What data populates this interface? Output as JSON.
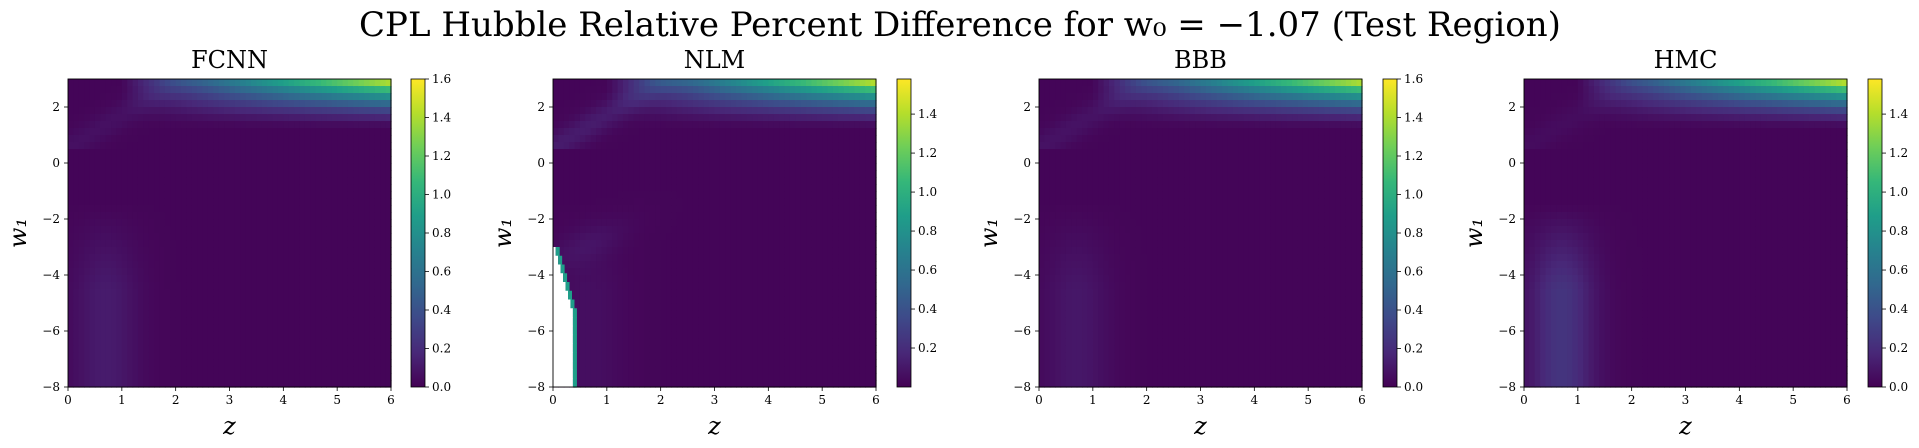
{
  "figure": {
    "title": "CPL Hubble Relative Percent Difference for w₀ = −1.07 (Test Region)"
  },
  "colormap": [
    "#440154",
    "#482878",
    "#3e4989",
    "#31688e",
    "#26828e",
    "#1f9e89",
    "#35b779",
    "#6ece58",
    "#b5de2b",
    "#fde725"
  ],
  "chart_data": [
    {
      "type": "heatmap",
      "title": "FCNN",
      "xlabel": "z",
      "ylabel": "w₁",
      "xlim": [
        0,
        6
      ],
      "ylim": [
        -8,
        3
      ],
      "xticks": [
        0,
        1,
        2,
        3,
        4,
        5,
        6
      ],
      "yticks": [
        -8,
        -6,
        -4,
        -2,
        0,
        2
      ],
      "colorbar": {
        "min": 0.0,
        "max": 1.6,
        "ticks": [
          "0.0",
          "0.2",
          "0.4",
          "0.6",
          "0.8",
          "1.0",
          "1.2",
          "1.4",
          "1.6"
        ]
      },
      "grid": false
    },
    {
      "type": "heatmap",
      "title": "NLM",
      "xlabel": "z",
      "ylabel": "w₁",
      "xlim": [
        0,
        6
      ],
      "ylim": [
        -8,
        3
      ],
      "xticks": [
        0,
        1,
        2,
        3,
        4,
        5,
        6
      ],
      "yticks": [
        -8,
        -6,
        -4,
        -2,
        0,
        2
      ],
      "colorbar": {
        "min": 0.0,
        "max": 1.58,
        "ticks": [
          "0.2",
          "0.4",
          "0.6",
          "0.8",
          "1.0",
          "1.2",
          "1.4"
        ]
      },
      "grid": false
    },
    {
      "type": "heatmap",
      "title": "BBB",
      "xlabel": "z",
      "ylabel": "w₁",
      "xlim": [
        0,
        6
      ],
      "ylim": [
        -8,
        3
      ],
      "xticks": [
        0,
        1,
        2,
        3,
        4,
        5,
        6
      ],
      "yticks": [
        -8,
        -6,
        -4,
        -2,
        0,
        2
      ],
      "colorbar": {
        "min": 0.0,
        "max": 1.6,
        "ticks": [
          "0.0",
          "0.2",
          "0.4",
          "0.6",
          "0.8",
          "1.0",
          "1.2",
          "1.4",
          "1.6"
        ]
      },
      "grid": false
    },
    {
      "type": "heatmap",
      "title": "HMC",
      "xlabel": "z",
      "ylabel": "w₁",
      "xlim": [
        0,
        6
      ],
      "ylim": [
        -8,
        3
      ],
      "xticks": [
        0,
        1,
        2,
        3,
        4,
        5,
        6
      ],
      "yticks": [
        -8,
        -6,
        -4,
        -2,
        0,
        2
      ],
      "colorbar": {
        "min": 0.0,
        "max": 1.58,
        "ticks": [
          "0.0",
          "0.2",
          "0.4",
          "0.6",
          "0.8",
          "1.0",
          "1.2",
          "1.4"
        ]
      },
      "grid": false
    }
  ]
}
